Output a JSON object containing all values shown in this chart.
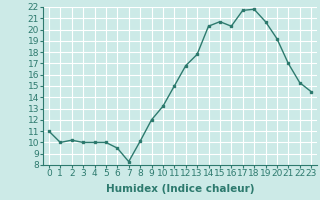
{
  "xlabel": "Humidex (Indice chaleur)",
  "x": [
    0,
    1,
    2,
    3,
    4,
    5,
    6,
    7,
    8,
    9,
    10,
    11,
    12,
    13,
    14,
    15,
    16,
    17,
    18,
    19,
    20,
    21,
    22,
    23
  ],
  "y": [
    11.0,
    10.0,
    10.2,
    10.0,
    10.0,
    10.0,
    9.5,
    8.3,
    10.1,
    12.0,
    13.2,
    15.0,
    16.8,
    17.8,
    20.3,
    20.7,
    20.3,
    21.7,
    21.8,
    20.7,
    19.2,
    17.0,
    15.3,
    14.5
  ],
  "ylim": [
    8,
    22
  ],
  "yticks": [
    8,
    9,
    10,
    11,
    12,
    13,
    14,
    15,
    16,
    17,
    18,
    19,
    20,
    21,
    22
  ],
  "xticks": [
    0,
    1,
    2,
    3,
    4,
    5,
    6,
    7,
    8,
    9,
    10,
    11,
    12,
    13,
    14,
    15,
    16,
    17,
    18,
    19,
    20,
    21,
    22,
    23
  ],
  "line_color": "#2d7a6e",
  "marker": "s",
  "marker_size": 2.0,
  "bg_color": "#cceae7",
  "grid_color": "#ffffff",
  "axis_color": "#2d7a6e",
  "label_fontsize": 7.5,
  "tick_fontsize": 6.5
}
